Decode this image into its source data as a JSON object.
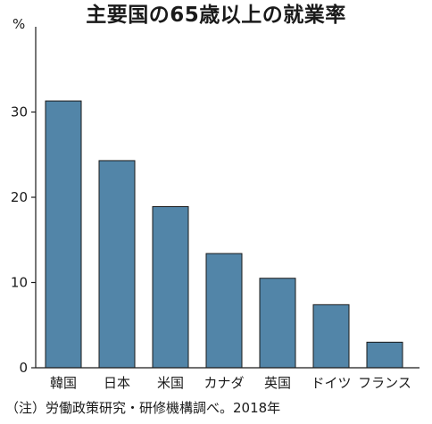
{
  "chart_data": {
    "type": "bar",
    "title": "主要国の65歳以上の就業率",
    "ylabel": "%",
    "xlabel": "",
    "categories": [
      "韓国",
      "日本",
      "米国",
      "カナダ",
      "英国",
      "ドイツ",
      "フランス"
    ],
    "values": [
      31.3,
      24.3,
      18.9,
      13.4,
      10.5,
      7.4,
      3.0
    ],
    "ylim": [
      0,
      40
    ],
    "yticks": [
      0,
      10,
      20,
      30
    ],
    "grid": false,
    "bar_color": "#5285a8",
    "note": "（注）労働政策研究・研修機構調べ。2018年"
  }
}
